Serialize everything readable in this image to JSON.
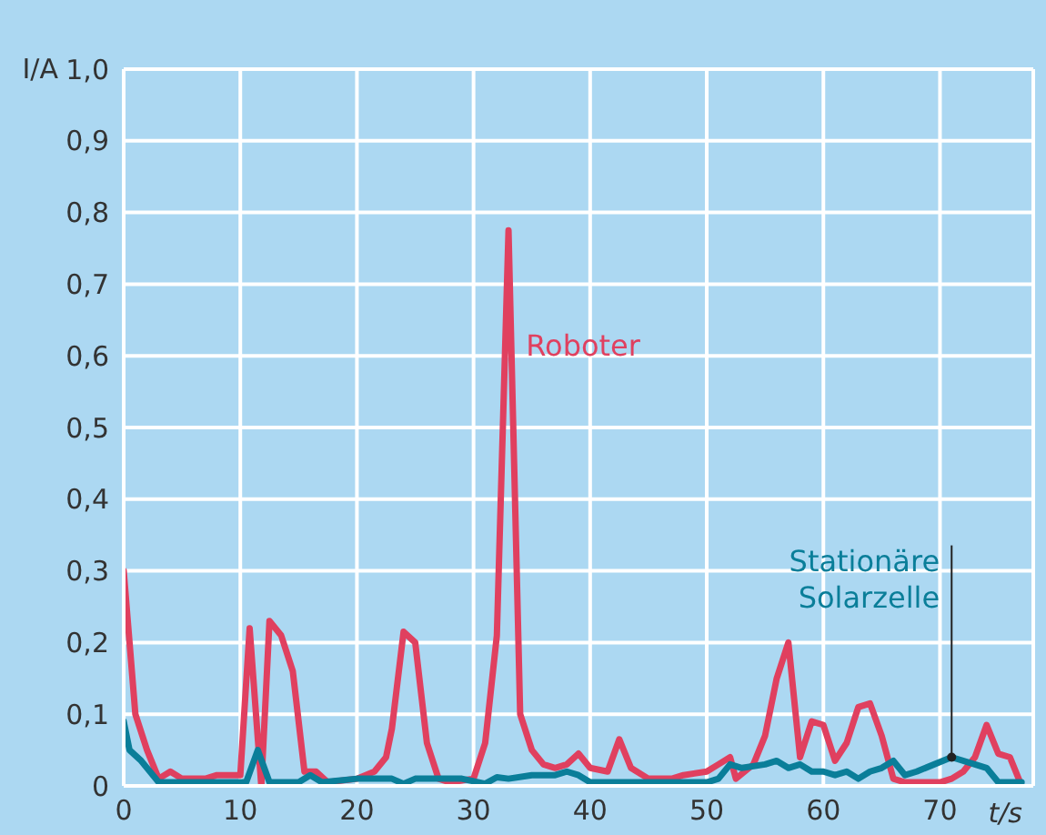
{
  "chart_data": {
    "type": "line",
    "xlabel": "t/s",
    "ylabel": "I/A",
    "xlim": [
      0,
      78
    ],
    "xticks": [
      0,
      10,
      20,
      30,
      40,
      50,
      60,
      70
    ],
    "ylim": [
      0,
      1
    ],
    "yticks": [
      0,
      {
        "value": 0.1,
        "label": "0,1"
      },
      {
        "value": 0.2,
        "label": "0,2"
      },
      {
        "value": 0.3,
        "label": "0,3"
      },
      {
        "value": 0.4,
        "label": "0,4"
      },
      {
        "value": 0.5,
        "label": "0,5"
      },
      {
        "value": 0.6,
        "label": "0,6"
      },
      {
        "value": 0.7,
        "label": "0,7"
      },
      {
        "value": 0.8,
        "label": "0,8"
      },
      {
        "value": 0.9,
        "label": "0,9"
      },
      {
        "value": 1,
        "label": "1,0"
      }
    ],
    "grid": true,
    "legend": false,
    "marker": "none",
    "line_style": "solid",
    "series": [
      {
        "name": "Roboter",
        "color": "#e0405f",
        "x": [
          0,
          0.5,
          1,
          2,
          3,
          4,
          5,
          7,
          8,
          10,
          10.8,
          11.8,
          12.5,
          13.5,
          14.5,
          15.5,
          16.5,
          17.5,
          20,
          21.5,
          22.5,
          23,
          24,
          25,
          26,
          27,
          28,
          30,
          31,
          32,
          33,
          34,
          35,
          36,
          37,
          38,
          39,
          40,
          41.5,
          42.5,
          43.5,
          45,
          47,
          48,
          50,
          51,
          52,
          52.5,
          54,
          55,
          56,
          57,
          58,
          59,
          60,
          61,
          62,
          63,
          64,
          65,
          66,
          67,
          70,
          71,
          72,
          73,
          74,
          75,
          76,
          77
        ],
        "values": [
          0.3,
          0.2,
          0.1,
          0.05,
          0.01,
          0.02,
          0.01,
          0.01,
          0.015,
          0.015,
          0.22,
          0,
          0.23,
          0.21,
          0.16,
          0.02,
          0.02,
          0.005,
          0.01,
          0.02,
          0.04,
          0.08,
          0.215,
          0.2,
          0.06,
          0.01,
          0.005,
          0.01,
          0.06,
          0.21,
          0.775,
          0.1,
          0.05,
          0.03,
          0.025,
          0.03,
          0.045,
          0.025,
          0.02,
          0.065,
          0.025,
          0.01,
          0.01,
          0.015,
          0.02,
          0.03,
          0.04,
          0.01,
          0.03,
          0.07,
          0.15,
          0.2,
          0.04,
          0.09,
          0.085,
          0.035,
          0.06,
          0.11,
          0.115,
          0.07,
          0.01,
          0.005,
          0.005,
          0.01,
          0.02,
          0.04,
          0.085,
          0.045,
          0.04,
          0
        ]
      },
      {
        "name": "Stationäre Solarzelle",
        "color": "#0a7e99",
        "x": [
          0,
          0.5,
          1.5,
          3,
          5,
          10.5,
          11.5,
          12.5,
          15,
          16,
          17,
          20,
          22,
          23,
          24,
          25,
          29,
          31,
          32,
          33,
          35,
          37,
          38,
          39,
          40,
          50,
          51,
          52,
          53,
          55,
          56,
          57,
          58,
          59,
          60,
          61,
          62,
          63,
          64,
          65,
          66,
          67,
          68,
          71,
          73,
          74,
          75,
          77
        ],
        "values": [
          0.09,
          0.05,
          0.035,
          0.005,
          0.005,
          0.005,
          0.05,
          0.005,
          0.005,
          0.015,
          0.005,
          0.01,
          0.01,
          0.01,
          0.003,
          0.01,
          0.01,
          0.003,
          0.012,
          0.01,
          0.015,
          0.015,
          0.02,
          0.015,
          0.005,
          0.005,
          0.01,
          0.03,
          0.025,
          0.03,
          0.035,
          0.025,
          0.03,
          0.02,
          0.02,
          0.015,
          0.02,
          0.01,
          0.02,
          0.025,
          0.035,
          0.015,
          0.02,
          0.04,
          0.03,
          0.025,
          0.005,
          0.005
        ]
      }
    ]
  }
}
